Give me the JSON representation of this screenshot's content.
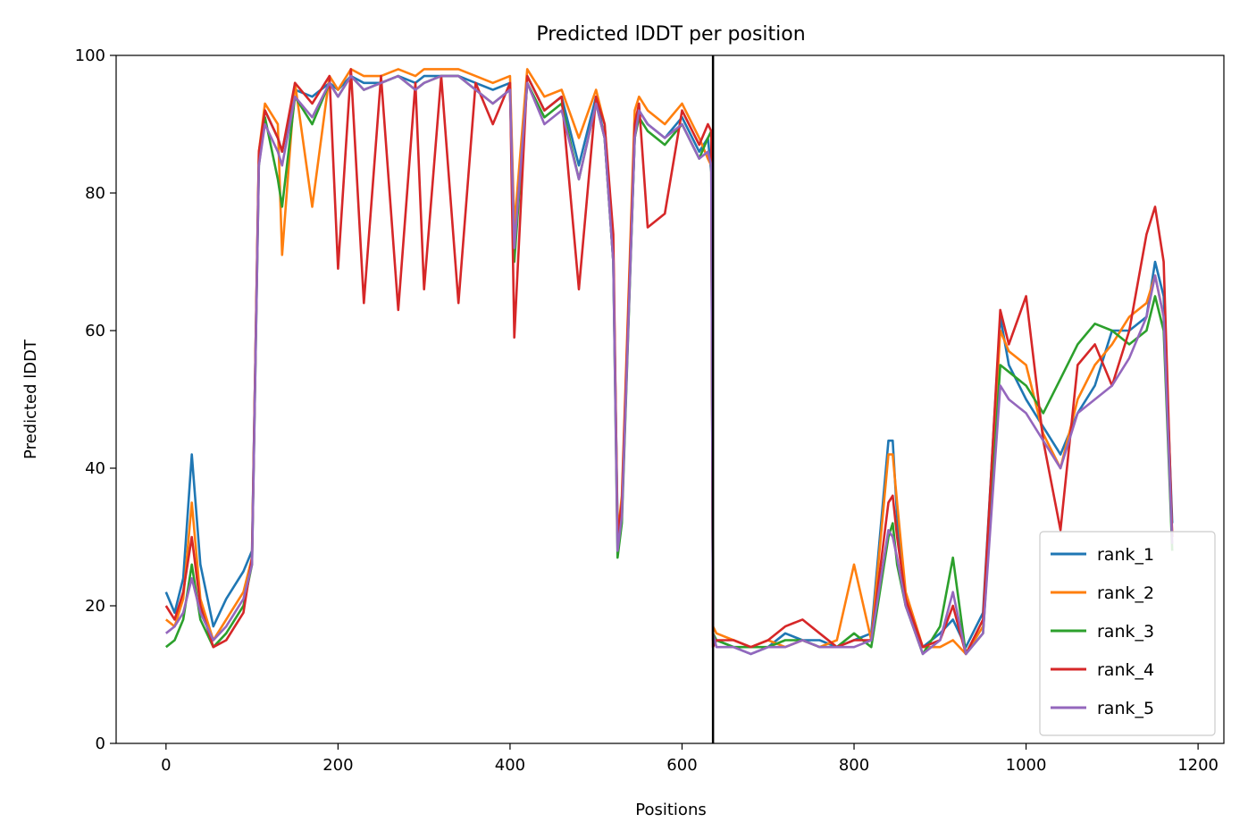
{
  "chart_data": {
    "type": "line",
    "title": "Predicted lDDT per position",
    "xlabel": "Positions",
    "ylabel": "Predicted lDDT",
    "xlim": [
      -58,
      1230
    ],
    "ylim": [
      0,
      100
    ],
    "xticks": [
      0,
      200,
      400,
      600,
      800,
      1000,
      1200
    ],
    "yticks": [
      0,
      20,
      40,
      60,
      80,
      100
    ],
    "grid": false,
    "legend_position": "lower-right",
    "vline_x": 636,
    "series": [
      {
        "name": "rank_1",
        "color": "#1f77b4",
        "x": [
          0,
          10,
          20,
          30,
          40,
          55,
          70,
          90,
          100,
          108,
          115,
          130,
          135,
          150,
          170,
          190,
          200,
          215,
          230,
          250,
          270,
          290,
          300,
          320,
          340,
          360,
          380,
          400,
          405,
          420,
          440,
          460,
          480,
          500,
          510,
          520,
          525,
          530,
          545,
          550,
          560,
          580,
          600,
          620,
          630,
          634,
          636,
          640,
          660,
          680,
          700,
          720,
          740,
          760,
          780,
          800,
          820,
          840,
          845,
          850,
          860,
          880,
          900,
          915,
          930,
          950,
          970,
          980,
          1000,
          1020,
          1040,
          1060,
          1080,
          1100,
          1120,
          1140,
          1150,
          1160,
          1170
        ],
        "y": [
          22,
          19,
          24,
          42,
          26,
          17,
          21,
          25,
          28,
          85,
          92,
          88,
          86,
          95,
          94,
          96,
          95,
          97,
          96,
          96,
          97,
          96,
          97,
          97,
          97,
          96,
          95,
          96,
          72,
          97,
          92,
          94,
          84,
          94,
          88,
          70,
          32,
          34,
          88,
          92,
          90,
          88,
          91,
          86,
          88,
          83,
          15,
          15,
          14,
          13,
          14,
          16,
          15,
          15,
          14,
          15,
          16,
          44,
          44,
          33,
          20,
          14,
          16,
          18,
          14,
          19,
          62,
          55,
          50,
          46,
          42,
          48,
          52,
          60,
          60,
          62,
          70,
          65,
          32
        ]
      },
      {
        "name": "rank_2",
        "color": "#ff7f0e",
        "x": [
          0,
          10,
          20,
          30,
          40,
          55,
          70,
          90,
          100,
          108,
          115,
          130,
          135,
          150,
          170,
          190,
          200,
          215,
          230,
          250,
          270,
          290,
          300,
          320,
          340,
          360,
          380,
          400,
          405,
          420,
          440,
          460,
          480,
          500,
          510,
          520,
          525,
          530,
          545,
          550,
          560,
          580,
          600,
          620,
          630,
          634,
          636,
          640,
          660,
          680,
          700,
          720,
          740,
          760,
          780,
          800,
          820,
          840,
          845,
          850,
          860,
          880,
          900,
          915,
          930,
          950,
          970,
          980,
          1000,
          1020,
          1040,
          1060,
          1080,
          1100,
          1120,
          1140,
          1150,
          1160,
          1170
        ],
        "y": [
          18,
          17,
          21,
          35,
          21,
          15,
          18,
          22,
          27,
          86,
          93,
          90,
          71,
          96,
          78,
          97,
          95,
          98,
          97,
          97,
          98,
          97,
          98,
          98,
          98,
          97,
          96,
          97,
          75,
          98,
          94,
          95,
          88,
          95,
          90,
          72,
          30,
          36,
          92,
          94,
          92,
          90,
          93,
          88,
          85,
          84,
          17,
          16,
          15,
          14,
          15,
          14,
          15,
          14,
          15,
          26,
          15,
          42,
          42,
          35,
          22,
          14,
          14,
          15,
          13,
          17,
          60,
          57,
          55,
          45,
          40,
          50,
          55,
          58,
          62,
          64,
          68,
          62,
          30
        ]
      },
      {
        "name": "rank_3",
        "color": "#2ca02c",
        "x": [
          0,
          10,
          20,
          30,
          40,
          55,
          70,
          90,
          100,
          108,
          115,
          130,
          135,
          150,
          170,
          190,
          200,
          215,
          230,
          250,
          270,
          290,
          300,
          320,
          340,
          360,
          380,
          400,
          405,
          420,
          440,
          460,
          480,
          500,
          510,
          520,
          525,
          530,
          545,
          550,
          560,
          580,
          600,
          620,
          630,
          634,
          636,
          640,
          660,
          680,
          700,
          720,
          740,
          760,
          780,
          800,
          820,
          840,
          845,
          850,
          860,
          880,
          900,
          915,
          930,
          950,
          970,
          980,
          1000,
          1020,
          1040,
          1060,
          1080,
          1100,
          1120,
          1140,
          1150,
          1160,
          1170
        ],
        "y": [
          14,
          15,
          18,
          26,
          18,
          14,
          16,
          20,
          26,
          84,
          91,
          82,
          78,
          94,
          90,
          96,
          94,
          97,
          95,
          96,
          97,
          95,
          96,
          97,
          97,
          95,
          93,
          95,
          70,
          96,
          91,
          93,
          82,
          93,
          88,
          70,
          27,
          32,
          88,
          91,
          89,
          87,
          90,
          85,
          88,
          89,
          16,
          15,
          14,
          14,
          14,
          15,
          15,
          14,
          14,
          16,
          14,
          30,
          32,
          26,
          20,
          13,
          17,
          27,
          13,
          16,
          55,
          54,
          52,
          48,
          53,
          58,
          61,
          60,
          58,
          60,
          65,
          60,
          28
        ]
      },
      {
        "name": "rank_4",
        "color": "#d62728",
        "x": [
          0,
          10,
          20,
          30,
          40,
          55,
          70,
          90,
          100,
          108,
          115,
          130,
          135,
          150,
          170,
          190,
          200,
          215,
          230,
          250,
          270,
          290,
          300,
          320,
          340,
          360,
          380,
          400,
          405,
          420,
          440,
          460,
          480,
          500,
          510,
          520,
          525,
          530,
          545,
          550,
          560,
          580,
          600,
          620,
          630,
          634,
          636,
          640,
          660,
          680,
          700,
          720,
          740,
          760,
          780,
          800,
          820,
          840,
          845,
          850,
          860,
          880,
          900,
          915,
          930,
          950,
          970,
          980,
          1000,
          1020,
          1040,
          1060,
          1080,
          1100,
          1120,
          1140,
          1150,
          1160,
          1170
        ],
        "y": [
          20,
          18,
          22,
          30,
          20,
          14,
          15,
          19,
          27,
          86,
          92,
          88,
          86,
          96,
          93,
          97,
          69,
          98,
          64,
          97,
          63,
          96,
          66,
          97,
          64,
          96,
          90,
          96,
          59,
          97,
          92,
          94,
          66,
          94,
          90,
          74,
          30,
          35,
          90,
          93,
          75,
          77,
          92,
          87,
          90,
          89,
          14,
          15,
          15,
          14,
          15,
          17,
          18,
          16,
          14,
          15,
          15,
          35,
          36,
          30,
          21,
          14,
          15,
          20,
          13,
          18,
          63,
          58,
          65,
          44,
          31,
          55,
          58,
          52,
          60,
          74,
          78,
          70,
          30
        ]
      },
      {
        "name": "rank_5",
        "color": "#9467bd",
        "x": [
          0,
          10,
          20,
          30,
          40,
          55,
          70,
          90,
          100,
          108,
          115,
          130,
          135,
          150,
          170,
          190,
          200,
          215,
          230,
          250,
          270,
          290,
          300,
          320,
          340,
          360,
          380,
          400,
          405,
          420,
          440,
          460,
          480,
          500,
          510,
          520,
          525,
          530,
          545,
          550,
          560,
          580,
          600,
          620,
          630,
          634,
          636,
          640,
          660,
          680,
          700,
          720,
          740,
          760,
          780,
          800,
          820,
          840,
          845,
          850,
          860,
          880,
          900,
          915,
          930,
          950,
          970,
          980,
          1000,
          1020,
          1040,
          1060,
          1080,
          1100,
          1120,
          1140,
          1150,
          1160,
          1170
        ],
        "y": [
          16,
          17,
          19,
          24,
          19,
          15,
          17,
          21,
          26,
          84,
          90,
          86,
          84,
          94,
          91,
          96,
          94,
          97,
          95,
          96,
          97,
          95,
          96,
          97,
          97,
          95,
          93,
          95,
          72,
          96,
          90,
          92,
          82,
          93,
          88,
          70,
          28,
          33,
          88,
          92,
          90,
          88,
          90,
          85,
          86,
          84,
          16,
          14,
          14,
          13,
          14,
          14,
          15,
          14,
          14,
          14,
          15,
          31,
          30,
          27,
          20,
          13,
          15,
          22,
          13,
          16,
          52,
          50,
          48,
          44,
          40,
          48,
          50,
          52,
          56,
          62,
          68,
          62,
          29
        ]
      }
    ]
  }
}
